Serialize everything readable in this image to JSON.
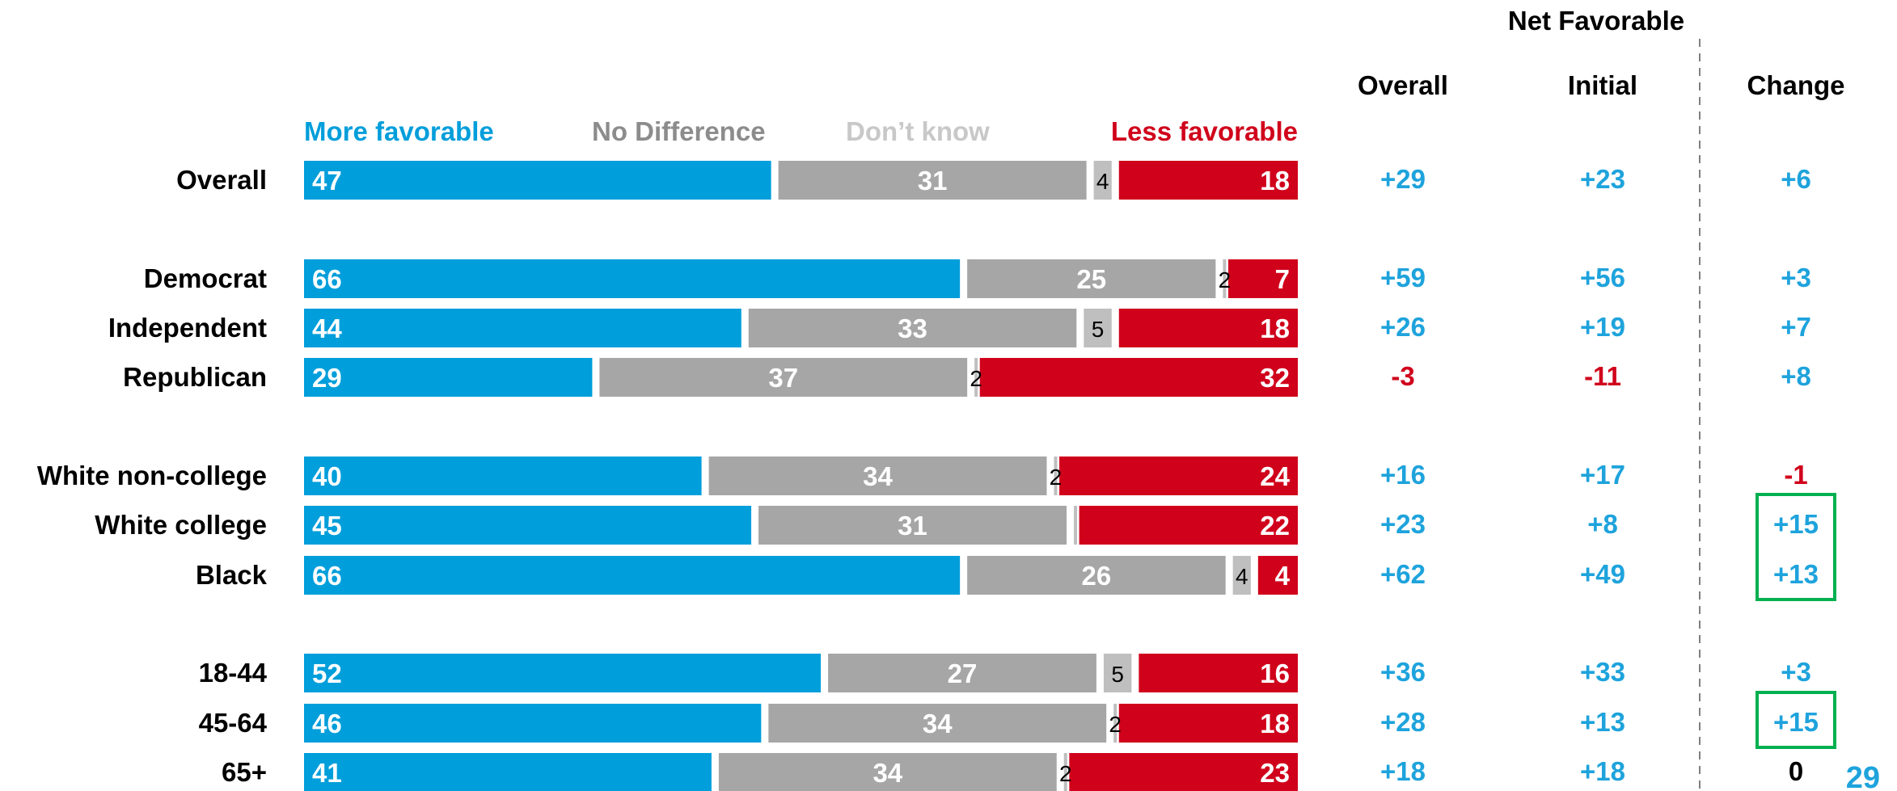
{
  "colors": {
    "favorable": "#009EDB",
    "no_difference": "#A6A6A6",
    "dont_know": "#BFBFBF",
    "less_favorable": "#D0021B",
    "positive_text": "#1EA3DC",
    "negative_text": "#D0021B",
    "neutral_text": "#000000",
    "highlight_box": "#00B050"
  },
  "legend": {
    "more_favorable": "More favorable",
    "no_difference": "No Difference",
    "dont_know": "Don’t know",
    "less_favorable": "Less favorable"
  },
  "columns": {
    "group_header": "Net Favorable",
    "overall": "Overall",
    "initial": "Initial",
    "change": "Change"
  },
  "page_number": "29",
  "chart_data": {
    "type": "bar",
    "stacked": true,
    "orientation": "horizontal",
    "categories": [
      "Overall",
      "Democrat",
      "Independent",
      "Republican",
      "White non-college",
      "White college",
      "Black",
      "18-44",
      "45-64",
      "65+"
    ],
    "groups": [
      [
        0
      ],
      [
        1,
        2,
        3
      ],
      [
        4,
        5,
        6
      ],
      [
        7,
        8,
        9
      ]
    ],
    "series": [
      {
        "name": "More favorable",
        "values": [
          47,
          66,
          44,
          29,
          40,
          45,
          66,
          52,
          46,
          41
        ]
      },
      {
        "name": "No Difference",
        "values": [
          31,
          25,
          33,
          37,
          34,
          31,
          26,
          27,
          34,
          34
        ]
      },
      {
        "name": "Don’t know",
        "values": [
          4,
          2,
          5,
          2,
          2,
          null,
          4,
          5,
          2,
          2
        ]
      },
      {
        "name": "Less favorable",
        "values": [
          18,
          7,
          18,
          32,
          24,
          22,
          4,
          16,
          18,
          23
        ]
      }
    ],
    "dont_know_unlabeled_values": [
      null,
      null,
      null,
      null,
      null,
      1,
      null,
      null,
      null,
      null
    ],
    "table": {
      "overall": [
        "+29",
        "+59",
        "+26",
        "-3",
        "+16",
        "+23",
        "+62",
        "+36",
        "+28",
        "+18"
      ],
      "initial": [
        "+23",
        "+56",
        "+19",
        "-11",
        "+17",
        "+8",
        "+49",
        "+33",
        "+13",
        "+18"
      ],
      "change": [
        "+6",
        "+3",
        "+7",
        "+8",
        "-1",
        "+15",
        "+13",
        "+3",
        "+15",
        "0"
      ]
    },
    "highlighted_change": [
      [
        5,
        6
      ],
      [
        8
      ]
    ]
  }
}
